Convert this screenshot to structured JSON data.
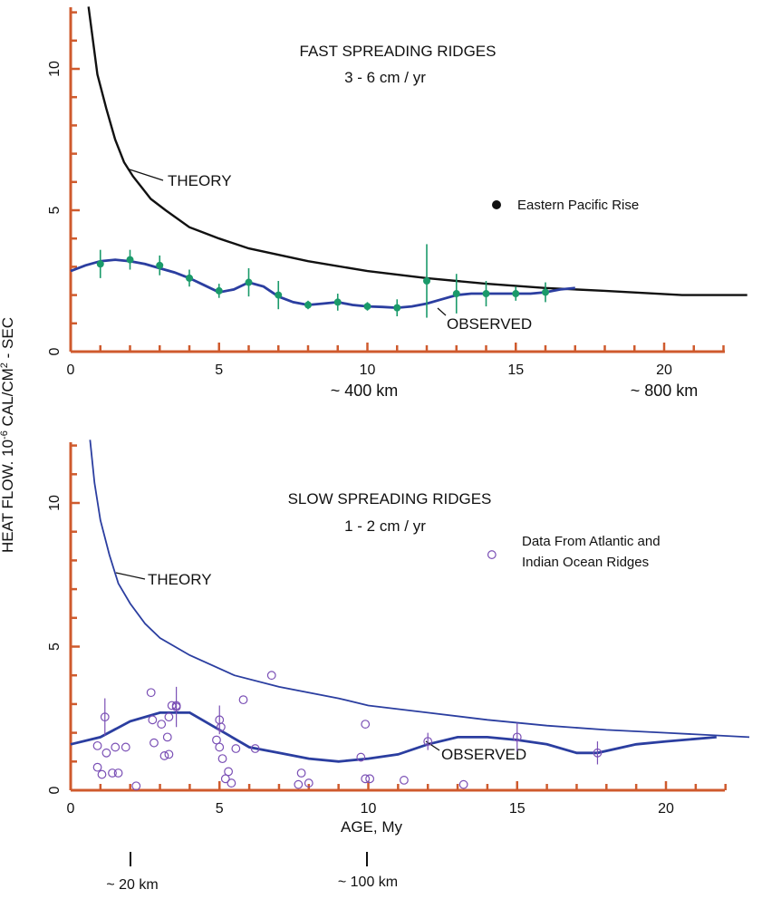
{
  "ylabel_parts": [
    "HEAT FLOW. 10",
    "-6",
    " CAL/CM",
    "2",
    " - SEC"
  ],
  "xlabel": "AGE, My",
  "chart_data": [
    {
      "type": "line",
      "title": "FAST SPREADING RIDGES",
      "subtitle": "3 - 6  cm / yr",
      "xlim": [
        0,
        22.8
      ],
      "ylim": [
        0,
        12.3
      ],
      "xticks": [
        0,
        5,
        10,
        15,
        20
      ],
      "yticks": [
        0,
        5,
        10
      ],
      "distance_labels": [
        "~ 400 km",
        "~ 800 km"
      ],
      "theory_label": "THEORY",
      "observed_label": "OBSERVED",
      "legend": "Eastern Pacific Rise",
      "theory": {
        "x": [
          0.6,
          0.9,
          1.2,
          1.5,
          1.8,
          2.1,
          2.4,
          2.7,
          3.2,
          4.0,
          5.0,
          6.0,
          8.0,
          10.0,
          12.0,
          14.0,
          16.0,
          18.0,
          20.6,
          22.8
        ],
        "y": [
          12.2,
          9.8,
          8.6,
          7.5,
          6.7,
          6.2,
          5.8,
          5.4,
          5.0,
          4.4,
          4.0,
          3.65,
          3.2,
          2.85,
          2.6,
          2.4,
          2.25,
          2.15,
          2.0,
          2.0
        ]
      },
      "observed": {
        "x": [
          0,
          0.5,
          1.0,
          1.5,
          2.0,
          2.5,
          3.0,
          3.5,
          4.0,
          4.5,
          5.0,
          5.5,
          6.0,
          6.5,
          7.0,
          7.5,
          8.0,
          8.5,
          9.0,
          9.5,
          10.0,
          10.5,
          11.0,
          11.5,
          12.0,
          12.5,
          13.0,
          13.5,
          14.0,
          14.5,
          15.0,
          15.5,
          16.0,
          16.5,
          17.0
        ],
        "y": [
          2.85,
          3.05,
          3.2,
          3.25,
          3.2,
          3.1,
          2.95,
          2.8,
          2.6,
          2.35,
          2.1,
          2.2,
          2.45,
          2.3,
          1.95,
          1.75,
          1.65,
          1.7,
          1.75,
          1.65,
          1.6,
          1.58,
          1.55,
          1.6,
          1.7,
          1.85,
          2.0,
          2.05,
          2.05,
          2.05,
          2.05,
          2.05,
          2.1,
          2.2,
          2.25
        ]
      },
      "points": [
        {
          "x": 1,
          "y": 3.1,
          "err": 0.5
        },
        {
          "x": 2,
          "y": 3.25,
          "err": 0.35
        },
        {
          "x": 3,
          "y": 3.05,
          "err": 0.35
        },
        {
          "x": 4,
          "y": 2.6,
          "err": 0.3
        },
        {
          "x": 5,
          "y": 2.15,
          "err": 0.25
        },
        {
          "x": 6,
          "y": 2.45,
          "err": 0.5
        },
        {
          "x": 7,
          "y": 2.0,
          "err": 0.5
        },
        {
          "x": 8,
          "y": 1.65,
          "err": 0.15
        },
        {
          "x": 9,
          "y": 1.75,
          "err": 0.3
        },
        {
          "x": 10,
          "y": 1.6,
          "err": 0.15
        },
        {
          "x": 11,
          "y": 1.55,
          "err": 0.3
        },
        {
          "x": 12,
          "y": 2.5,
          "err": 1.3
        },
        {
          "x": 13,
          "y": 2.05,
          "err": 0.7
        },
        {
          "x": 14,
          "y": 2.05,
          "err": 0.45
        },
        {
          "x": 15,
          "y": 2.05,
          "err": 0.25
        },
        {
          "x": 16,
          "y": 2.1,
          "err": 0.35
        }
      ]
    },
    {
      "type": "scatter",
      "title": "SLOW SPREADING RIDGES",
      "subtitle": "1 - 2  cm / yr",
      "xlim": [
        0,
        22.8
      ],
      "ylim": [
        0,
        12.3
      ],
      "xticks": [
        0,
        5,
        10,
        15,
        20
      ],
      "yticks": [
        0,
        5,
        10
      ],
      "distance_labels": [
        "~ 20 km",
        "~ 100 km"
      ],
      "theory_label": "THEORY",
      "observed_label": "OBSERVED",
      "legend_lines": [
        "Data From Atlantic and",
        "Indian Ocean Ridges"
      ],
      "theory": {
        "x": [
          0.65,
          0.8,
          1.0,
          1.3,
          1.6,
          2.0,
          2.5,
          3.0,
          4.0,
          5.5,
          7.0,
          9.0,
          10.0,
          12.0,
          14.0,
          16.0,
          18.0,
          20.0,
          22.8
        ],
        "y": [
          12.2,
          10.7,
          9.4,
          8.2,
          7.2,
          6.5,
          5.8,
          5.3,
          4.7,
          4.0,
          3.6,
          3.2,
          2.95,
          2.7,
          2.45,
          2.25,
          2.1,
          2.0,
          1.85
        ]
      },
      "observed": {
        "x": [
          0,
          1.0,
          2.0,
          3.0,
          4.0,
          5.0,
          6.0,
          7.0,
          8.0,
          9.0,
          10.0,
          11.0,
          12.0,
          13.0,
          14.0,
          15.0,
          16.0,
          17.0,
          17.7,
          19.0,
          20.0,
          21.7
        ],
        "y": [
          1.6,
          1.85,
          2.4,
          2.7,
          2.7,
          2.1,
          1.5,
          1.3,
          1.1,
          1.0,
          1.1,
          1.25,
          1.6,
          1.85,
          1.85,
          1.75,
          1.6,
          1.3,
          1.3,
          1.6,
          1.7,
          1.85
        ]
      },
      "points": [
        {
          "x": 0.9,
          "y": 1.55
        },
        {
          "x": 0.9,
          "y": 0.8
        },
        {
          "x": 1.05,
          "y": 0.55
        },
        {
          "x": 1.2,
          "y": 1.3
        },
        {
          "x": 1.4,
          "y": 0.6
        },
        {
          "x": 1.5,
          "y": 1.5
        },
        {
          "x": 1.6,
          "y": 0.6
        },
        {
          "x": 1.85,
          "y": 1.5
        },
        {
          "x": 2.2,
          "y": 0.15
        },
        {
          "x": 2.7,
          "y": 3.4
        },
        {
          "x": 2.75,
          "y": 2.45
        },
        {
          "x": 2.8,
          "y": 1.65
        },
        {
          "x": 3.05,
          "y": 2.3
        },
        {
          "x": 3.15,
          "y": 1.2
        },
        {
          "x": 3.3,
          "y": 1.25
        },
        {
          "x": 3.25,
          "y": 1.85
        },
        {
          "x": 3.3,
          "y": 2.55
        },
        {
          "x": 3.4,
          "y": 2.95
        },
        {
          "x": 3.55,
          "y": 2.95
        },
        {
          "x": 4.9,
          "y": 1.75
        },
        {
          "x": 5.0,
          "y": 1.5
        },
        {
          "x": 5.05,
          "y": 2.2
        },
        {
          "x": 5.1,
          "y": 1.1
        },
        {
          "x": 5.2,
          "y": 0.4
        },
        {
          "x": 5.3,
          "y": 0.65
        },
        {
          "x": 5.4,
          "y": 0.25
        },
        {
          "x": 5.55,
          "y": 1.45
        },
        {
          "x": 5.8,
          "y": 3.15
        },
        {
          "x": 6.2,
          "y": 1.45
        },
        {
          "x": 6.75,
          "y": 4.0
        },
        {
          "x": 7.65,
          "y": 0.2
        },
        {
          "x": 7.75,
          "y": 0.6
        },
        {
          "x": 8.0,
          "y": 0.25
        },
        {
          "x": 9.75,
          "y": 1.15
        },
        {
          "x": 9.9,
          "y": 2.3
        },
        {
          "x": 9.9,
          "y": 0.4
        },
        {
          "x": 10.05,
          "y": 0.4
        },
        {
          "x": 11.2,
          "y": 0.35
        },
        {
          "x": 13.2,
          "y": 0.2
        }
      ],
      "error_points": [
        {
          "x": 1.15,
          "y": 2.55,
          "err": 0.65
        },
        {
          "x": 3.55,
          "y": 2.9,
          "err": 0.7
        },
        {
          "x": 5.0,
          "y": 2.45,
          "err": 0.5
        },
        {
          "x": 12.0,
          "y": 1.7,
          "err": 0.3
        },
        {
          "x": 15.0,
          "y": 1.85,
          "err": 0.5
        },
        {
          "x": 17.7,
          "y": 1.3,
          "err": 0.4
        }
      ],
      "legend_point": {
        "x": 14.15,
        "y": 8.2
      }
    }
  ]
}
